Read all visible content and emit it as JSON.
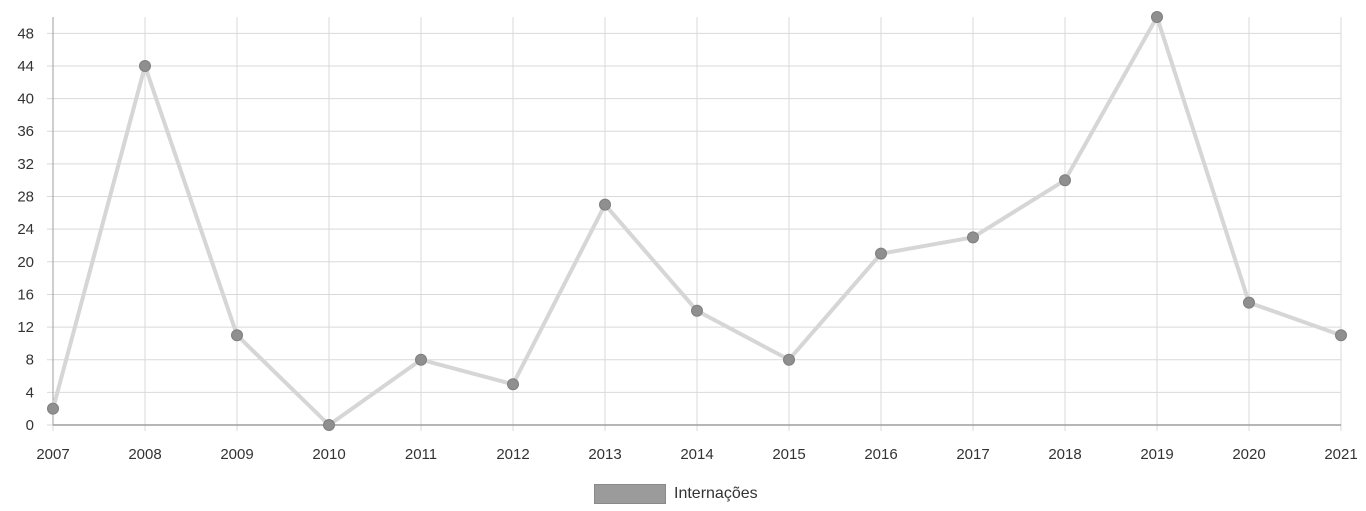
{
  "chart_data": {
    "type": "line",
    "title": "",
    "xlabel": "",
    "ylabel": "",
    "x": [
      "2007",
      "2008",
      "2009",
      "2010",
      "2011",
      "2012",
      "2013",
      "2014",
      "2015",
      "2016",
      "2017",
      "2018",
      "2019",
      "2020",
      "2021"
    ],
    "series": [
      {
        "name": "Internações",
        "values": [
          2,
          44,
          11,
          0,
          8,
          5,
          27,
          14,
          8,
          21,
          23,
          30,
          50,
          15,
          11
        ]
      }
    ],
    "ylim": [
      0,
      50
    ],
    "yticks": [
      0,
      4,
      8,
      12,
      16,
      20,
      24,
      28,
      32,
      36,
      40,
      44,
      48
    ],
    "grid": true,
    "legend_position": "bottom-center",
    "colors": {
      "line": "#d6d6d6",
      "point": "#8f8f8f",
      "grid": "#d9d9d9",
      "axis": "#9e9e9e",
      "legend_swatch": "#9b9b9b"
    }
  }
}
